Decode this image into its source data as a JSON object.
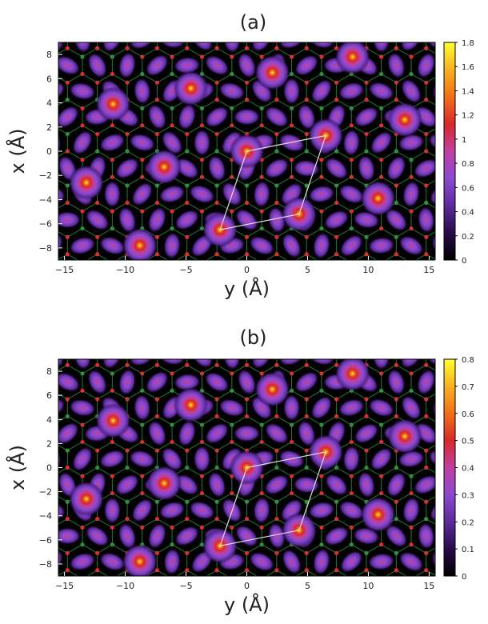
{
  "chart_data": [
    {
      "type": "heatmap",
      "panel_label": "(a)",
      "xlabel": "y (Å)",
      "ylabel": "x (Å)",
      "xlim": [
        -15.5,
        15.5
      ],
      "ylim": [
        -9,
        9
      ],
      "xticks": [
        -15,
        -10,
        -5,
        0,
        5,
        10,
        15
      ],
      "yticks": [
        -8,
        -6,
        -4,
        -2,
        0,
        2,
        4,
        6,
        8
      ],
      "colorbar": {
        "min": 0,
        "max": 1.8,
        "ticks": [
          "0",
          "0.2",
          "0.4",
          "0.6",
          "0.8",
          "1",
          "1.2",
          "1.4",
          "1.6",
          "1.8"
        ]
      },
      "colormap": [
        "#000000",
        "#2a0a4a",
        "#5b2b9a",
        "#8a4ad0",
        "#c040a0",
        "#d8282a",
        "#f07018",
        "#f8b020",
        "#ffff30"
      ],
      "grid": false,
      "overlay": {
        "lattice_lines_color": "#2e8b3e",
        "atom_colors": [
          "#d83030",
          "#2e9040"
        ],
        "supercell_vertices": [
          [
            0,
            0
          ],
          [
            6.5,
            1.3
          ],
          [
            4.3,
            -5.2
          ],
          [
            -2.2,
            -6.5
          ]
        ],
        "supercell_color": "#e0e0e0"
      },
      "peaks": [
        {
          "y": 0.0,
          "x": 0.0,
          "v": 1.8
        },
        {
          "y": 6.5,
          "x": 1.3,
          "v": 1.8
        },
        {
          "y": 4.3,
          "x": -5.2,
          "v": 1.8
        },
        {
          "y": -2.2,
          "x": -6.5,
          "v": 1.8
        },
        {
          "y": -11.0,
          "x": 3.9,
          "v": 1.8
        },
        {
          "y": -13.2,
          "x": -2.6,
          "v": 1.8
        },
        {
          "y": -8.8,
          "x": -7.8,
          "v": 1.8
        },
        {
          "y": -4.6,
          "x": 5.2,
          "v": 1.8
        },
        {
          "y": -6.8,
          "x": -1.3,
          "v": 1.8
        },
        {
          "y": 2.1,
          "x": 6.5,
          "v": 1.8
        },
        {
          "y": 8.7,
          "x": 7.8,
          "v": 1.8
        },
        {
          "y": 13.0,
          "x": 2.6,
          "v": 1.8
        },
        {
          "y": 10.8,
          "x": -3.9,
          "v": 1.8
        }
      ]
    },
    {
      "type": "heatmap",
      "panel_label": "(b)",
      "xlabel": "y (Å)",
      "ylabel": "x (Å)",
      "xlim": [
        -15.5,
        15.5
      ],
      "ylim": [
        -9,
        9
      ],
      "xticks": [
        -15,
        -10,
        -5,
        0,
        5,
        10,
        15
      ],
      "yticks": [
        -8,
        -6,
        -4,
        -2,
        0,
        2,
        4,
        6,
        8
      ],
      "colorbar": {
        "min": 0,
        "max": 0.8,
        "ticks": [
          "0",
          "0.1",
          "0.2",
          "0.3",
          "0.4",
          "0.5",
          "0.6",
          "0.7",
          "0.8"
        ]
      },
      "colormap": [
        "#000000",
        "#2a0a4a",
        "#5b2b9a",
        "#8a4ad0",
        "#c040a0",
        "#d8282a",
        "#f07018",
        "#f8b020",
        "#ffff30"
      ],
      "grid": false,
      "overlay": {
        "lattice_lines_color": "#2e8b3e",
        "atom_colors": [
          "#d83030",
          "#2e9040"
        ],
        "supercell_vertices": [
          [
            0,
            0
          ],
          [
            6.5,
            1.3
          ],
          [
            4.3,
            -5.2
          ],
          [
            -2.2,
            -6.5
          ]
        ],
        "supercell_color": "#e0e0e0"
      },
      "peaks": [
        {
          "y": 0.0,
          "x": 0.0,
          "v": 0.8
        },
        {
          "y": 6.5,
          "x": 1.3,
          "v": 0.8
        },
        {
          "y": 4.3,
          "x": -5.2,
          "v": 0.8
        },
        {
          "y": -2.2,
          "x": -6.5,
          "v": 0.8
        },
        {
          "y": -11.0,
          "x": 3.9,
          "v": 0.8
        },
        {
          "y": -13.2,
          "x": -2.6,
          "v": 0.8
        },
        {
          "y": -8.8,
          "x": -7.8,
          "v": 0.8
        },
        {
          "y": -4.6,
          "x": 5.2,
          "v": 0.8
        },
        {
          "y": -6.8,
          "x": -1.3,
          "v": 0.8
        },
        {
          "y": 2.1,
          "x": 6.5,
          "v": 0.8
        },
        {
          "y": 8.7,
          "x": 7.8,
          "v": 0.8
        },
        {
          "y": 13.0,
          "x": 2.6,
          "v": 0.8
        },
        {
          "y": 10.8,
          "x": -3.9,
          "v": 0.8
        }
      ]
    }
  ]
}
